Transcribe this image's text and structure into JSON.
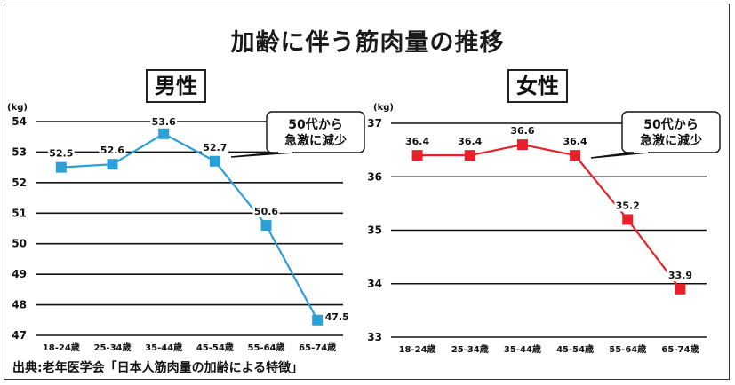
{
  "title": "加齢に伴う筋肉量の推移",
  "source": "出典:老年医学会「日本人筋肉量の加齢による特徴」",
  "chart_data": [
    {
      "type": "line",
      "title": "男性",
      "unit": "(kg)",
      "categories": [
        "18-24歳",
        "25-34歳",
        "35-44歳",
        "45-54歳",
        "55-64歳",
        "65-74歳"
      ],
      "values": [
        52.5,
        52.6,
        53.6,
        52.7,
        50.6,
        47.5
      ],
      "value_labels": [
        "52.5",
        "52.6",
        "53.6",
        "52.7",
        "50.6",
        "47.5"
      ],
      "yticks": [
        "47",
        "48",
        "49",
        "50",
        "51",
        "52",
        "53",
        "54"
      ],
      "ylim": [
        47,
        54
      ],
      "color": "#2a9fd8",
      "grid": true,
      "annotation": [
        "50代から",
        "急激に減少"
      ]
    },
    {
      "type": "line",
      "title": "女性",
      "unit": "(kg)",
      "categories": [
        "18-24歳",
        "25-34歳",
        "35-44歳",
        "45-54歳",
        "55-64歳",
        "65-74歳"
      ],
      "values": [
        36.4,
        36.4,
        36.6,
        36.4,
        35.2,
        33.9
      ],
      "value_labels": [
        "36.4",
        "36.4",
        "36.6",
        "36.4",
        "35.2",
        "33.9"
      ],
      "yticks": [
        "33",
        "34",
        "35",
        "36",
        "37"
      ],
      "ylim": [
        33,
        37
      ],
      "color": "#e8202a",
      "grid": true,
      "annotation": [
        "50代から",
        "急激に減少"
      ]
    }
  ]
}
